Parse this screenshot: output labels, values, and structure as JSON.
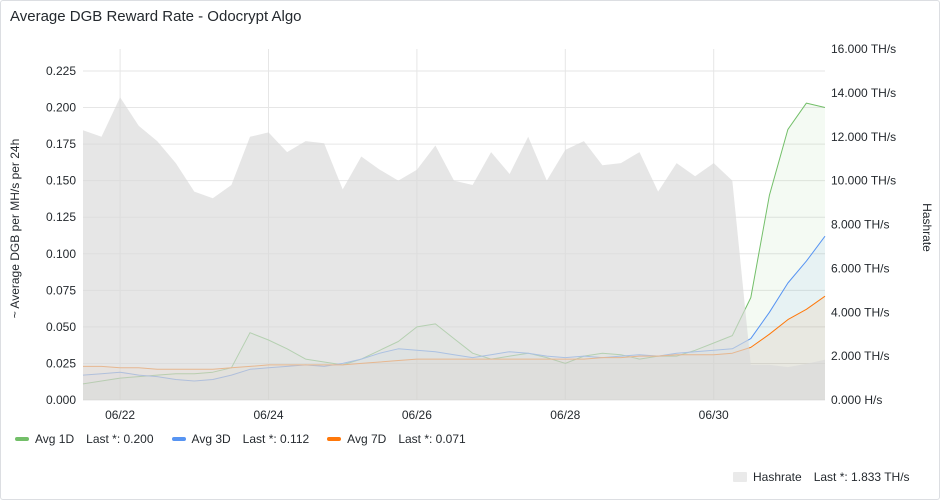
{
  "panel": {
    "title": "Average DGB Reward Rate - Odocrypt Algo"
  },
  "chart_data": {
    "type": "line",
    "title": "Average DGB Reward Rate - Odocrypt Algo",
    "ylabel": "~ Average DGB per MH/s per 24h",
    "y2label": "Hashrate",
    "xlim": [
      "06/21 12:00",
      "07/01 12:00"
    ],
    "ylim": [
      0,
      0.24
    ],
    "y2lim": [
      0,
      16000
    ],
    "x_ticks": [
      "06/22",
      "06/24",
      "06/26",
      "06/28",
      "06/30"
    ],
    "y_ticks": [
      "0.000",
      "0.025",
      "0.050",
      "0.075",
      "0.100",
      "0.125",
      "0.150",
      "0.175",
      "0.200",
      "0.225"
    ],
    "y2_ticks": [
      "0.000 H/s",
      "2.000 TH/s",
      "4.000 TH/s",
      "6.000 TH/s",
      "8.000 TH/s",
      "10.000 TH/s",
      "12.000 TH/s",
      "14.000 TH/s",
      "16.000 TH/s"
    ],
    "grid": true,
    "legend": "bottom",
    "x": [
      "06/21 12:00",
      "06/21 18:00",
      "06/22 00:00",
      "06/22 06:00",
      "06/22 12:00",
      "06/22 18:00",
      "06/23 00:00",
      "06/23 06:00",
      "06/23 12:00",
      "06/23 18:00",
      "06/24 00:00",
      "06/24 06:00",
      "06/24 12:00",
      "06/24 18:00",
      "06/25 00:00",
      "06/25 06:00",
      "06/25 12:00",
      "06/25 18:00",
      "06/26 00:00",
      "06/26 06:00",
      "06/26 12:00",
      "06/26 18:00",
      "06/27 00:00",
      "06/27 06:00",
      "06/27 12:00",
      "06/27 18:00",
      "06/28 00:00",
      "06/28 06:00",
      "06/28 12:00",
      "06/28 18:00",
      "06/29 00:00",
      "06/29 06:00",
      "06/29 12:00",
      "06/29 18:00",
      "06/30 00:00",
      "06/30 06:00",
      "06/30 12:00",
      "06/30 18:00",
      "07/01 00:00",
      "07/01 06:00",
      "07/01 12:00"
    ],
    "series": [
      {
        "name": "Avg 1D",
        "axis": "left",
        "color": "#73bf69",
        "values": [
          0.011,
          0.013,
          0.015,
          0.016,
          0.017,
          0.018,
          0.018,
          0.019,
          0.022,
          0.046,
          0.041,
          0.035,
          0.028,
          0.026,
          0.024,
          0.028,
          0.034,
          0.04,
          0.05,
          0.052,
          0.042,
          0.032,
          0.028,
          0.03,
          0.032,
          0.029,
          0.025,
          0.03,
          0.032,
          0.031,
          0.028,
          0.03,
          0.03,
          0.034,
          0.039,
          0.044,
          0.07,
          0.14,
          0.185,
          0.203,
          0.2
        ]
      },
      {
        "name": "Avg 3D",
        "axis": "left",
        "color": "#5794f2",
        "values": [
          0.017,
          0.018,
          0.019,
          0.017,
          0.016,
          0.014,
          0.013,
          0.014,
          0.017,
          0.021,
          0.022,
          0.023,
          0.024,
          0.023,
          0.025,
          0.028,
          0.032,
          0.035,
          0.034,
          0.033,
          0.031,
          0.029,
          0.031,
          0.033,
          0.032,
          0.03,
          0.029,
          0.03,
          0.029,
          0.03,
          0.031,
          0.03,
          0.032,
          0.033,
          0.034,
          0.035,
          0.042,
          0.06,
          0.08,
          0.095,
          0.112
        ]
      },
      {
        "name": "Avg 7D",
        "axis": "left",
        "color": "#ff780a",
        "values": [
          0.023,
          0.023,
          0.022,
          0.022,
          0.021,
          0.021,
          0.021,
          0.021,
          0.022,
          0.023,
          0.024,
          0.024,
          0.024,
          0.024,
          0.024,
          0.025,
          0.026,
          0.027,
          0.028,
          0.028,
          0.028,
          0.028,
          0.028,
          0.028,
          0.028,
          0.028,
          0.028,
          0.028,
          0.029,
          0.029,
          0.03,
          0.03,
          0.031,
          0.031,
          0.031,
          0.032,
          0.036,
          0.045,
          0.055,
          0.062,
          0.071
        ]
      },
      {
        "name": "Hashrate",
        "axis": "right",
        "color": "#e0e0e0",
        "values": [
          12300,
          12000,
          13800,
          12500,
          11800,
          10800,
          9500,
          9200,
          9800,
          12000,
          12200,
          11300,
          11800,
          11700,
          9600,
          11100,
          10500,
          10000,
          10500,
          11600,
          10000,
          9800,
          11300,
          10300,
          12000,
          10000,
          11400,
          11800,
          10700,
          10800,
          11300,
          9500,
          10800,
          10200,
          10800,
          10000,
          1600,
          1600,
          1500,
          1650,
          1833
        ]
      }
    ],
    "legend_items": [
      {
        "name": "Avg 1D",
        "last": "Last *: 0.200",
        "color": "#73bf69"
      },
      {
        "name": "Avg 3D",
        "last": "Last *: 0.112",
        "color": "#5794f2"
      },
      {
        "name": "Avg 7D",
        "last": "Last *: 0.071",
        "color": "#ff780a"
      }
    ],
    "legend_right": {
      "name": "Hashrate",
      "last": "Last *: 1.833 TH/s"
    }
  }
}
